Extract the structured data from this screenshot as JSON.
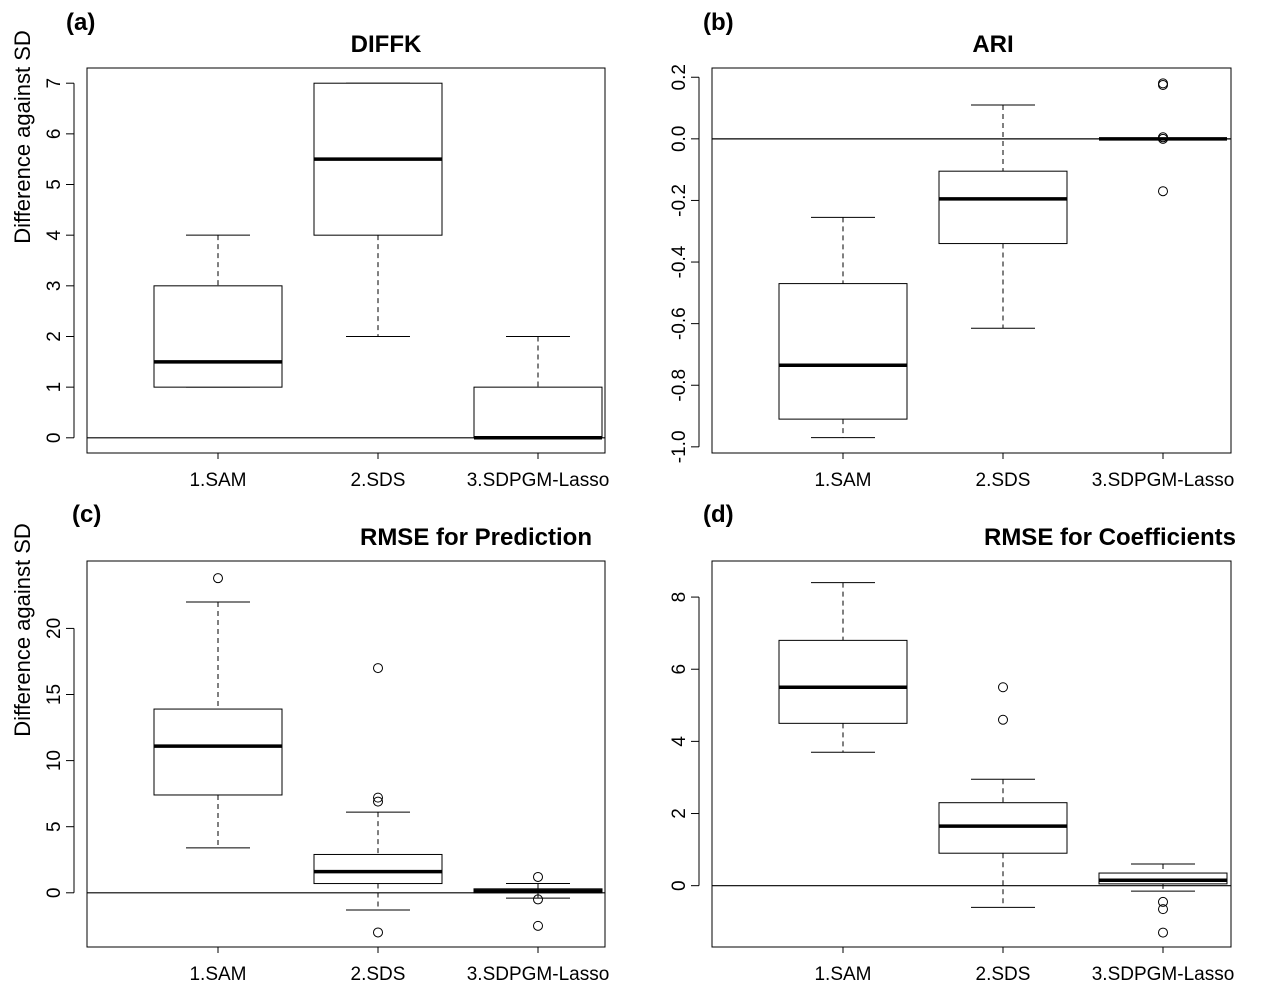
{
  "figure": {
    "ylabel": "Difference against SD",
    "colors": {
      "ink": "#000000",
      "background": "#ffffff"
    }
  },
  "chart_data": [
    {
      "panel": "(a)",
      "type": "boxplot",
      "title": "DIFFK",
      "ylabel": "Difference against SD",
      "categories": [
        "1.SAM",
        "2.SDS",
        "3.SDPGM-Lasso"
      ],
      "yticks": [
        0,
        1,
        2,
        3,
        4,
        5,
        6,
        7
      ],
      "ylim": [
        -0.3,
        7.3
      ],
      "reference_line": 0,
      "boxes": [
        {
          "category": "1.SAM",
          "whisker_low": 1,
          "q1": 1,
          "median": 1.5,
          "q3": 3,
          "whisker_high": 4,
          "outliers": []
        },
        {
          "category": "2.SDS",
          "whisker_low": 2,
          "q1": 4,
          "median": 5.5,
          "q3": 7,
          "whisker_high": 7,
          "outliers": []
        },
        {
          "category": "3.SDPGM-Lasso",
          "whisker_low": 0,
          "q1": 0,
          "median": 0,
          "q3": 1,
          "whisker_high": 2,
          "outliers": []
        }
      ]
    },
    {
      "panel": "(b)",
      "type": "boxplot",
      "title": "ARI",
      "ylabel": "",
      "categories": [
        "1.SAM",
        "2.SDS",
        "3.SDPGM-Lasso"
      ],
      "yticks": [
        -1.0,
        -0.8,
        -0.6,
        -0.4,
        -0.2,
        0.0,
        0.2
      ],
      "ytick_labels": [
        "-1.0",
        "-0.8",
        "-0.6",
        "-0.4",
        "-0.2",
        "0.0",
        "0.2"
      ],
      "ylim": [
        -1.02,
        0.23
      ],
      "reference_line": 0,
      "boxes": [
        {
          "category": "1.SAM",
          "whisker_low": -0.97,
          "q1": -0.91,
          "median": -0.735,
          "q3": -0.47,
          "whisker_high": -0.255,
          "outliers": []
        },
        {
          "category": "2.SDS",
          "whisker_low": -0.615,
          "q1": -0.34,
          "median": -0.195,
          "q3": -0.105,
          "whisker_high": 0.11,
          "outliers": []
        },
        {
          "category": "3.SDPGM-Lasso",
          "whisker_low": 0.0,
          "q1": 0.0,
          "median": 0.0,
          "q3": 0.0,
          "whisker_high": 0.0,
          "outliers": [
            0.18,
            0.175,
            0.005,
            0.0,
            -0.17
          ]
        }
      ]
    },
    {
      "panel": "(c)",
      "type": "boxplot",
      "title": "RMSE for Prediction",
      "ylabel": "Difference against SD",
      "categories": [
        "1.SAM",
        "2.SDS",
        "3.SDPGM-Lasso"
      ],
      "yticks": [
        0,
        5,
        10,
        15,
        20
      ],
      "ylim": [
        -4.1,
        25.1
      ],
      "reference_line": 0,
      "boxes": [
        {
          "category": "1.SAM",
          "whisker_low": 3.4,
          "q1": 7.4,
          "median": 11.1,
          "q3": 13.9,
          "whisker_high": 22.0,
          "outliers": [
            23.8
          ]
        },
        {
          "category": "2.SDS",
          "whisker_low": -1.3,
          "q1": 0.7,
          "median": 1.6,
          "q3": 2.9,
          "whisker_high": 6.1,
          "outliers": [
            17.0,
            7.2,
            6.9,
            -3.0
          ]
        },
        {
          "category": "3.SDPGM-Lasso",
          "whisker_low": -0.4,
          "q1": 0.0,
          "median": 0.15,
          "q3": 0.3,
          "whisker_high": 0.7,
          "outliers": [
            1.2,
            -0.5,
            -2.5
          ]
        }
      ]
    },
    {
      "panel": "(d)",
      "type": "boxplot",
      "title": "RMSE for Coefficients",
      "ylabel": "",
      "categories": [
        "1.SAM",
        "2.SDS",
        "3.SDPGM-Lasso"
      ],
      "yticks": [
        0,
        2,
        4,
        6,
        8
      ],
      "ylim": [
        -1.7,
        9.0
      ],
      "reference_line": 0,
      "boxes": [
        {
          "category": "1.SAM",
          "whisker_low": 3.7,
          "q1": 4.5,
          "median": 5.5,
          "q3": 6.8,
          "whisker_high": 8.4,
          "outliers": []
        },
        {
          "category": "2.SDS",
          "whisker_low": -0.6,
          "q1": 0.9,
          "median": 1.65,
          "q3": 2.3,
          "whisker_high": 2.95,
          "outliers": [
            5.5,
            4.6
          ]
        },
        {
          "category": "3.SDPGM-Lasso",
          "whisker_low": -0.15,
          "q1": 0.05,
          "median": 0.15,
          "q3": 0.35,
          "whisker_high": 0.6,
          "outliers": [
            -0.45,
            -0.65,
            -1.3
          ]
        }
      ]
    }
  ]
}
